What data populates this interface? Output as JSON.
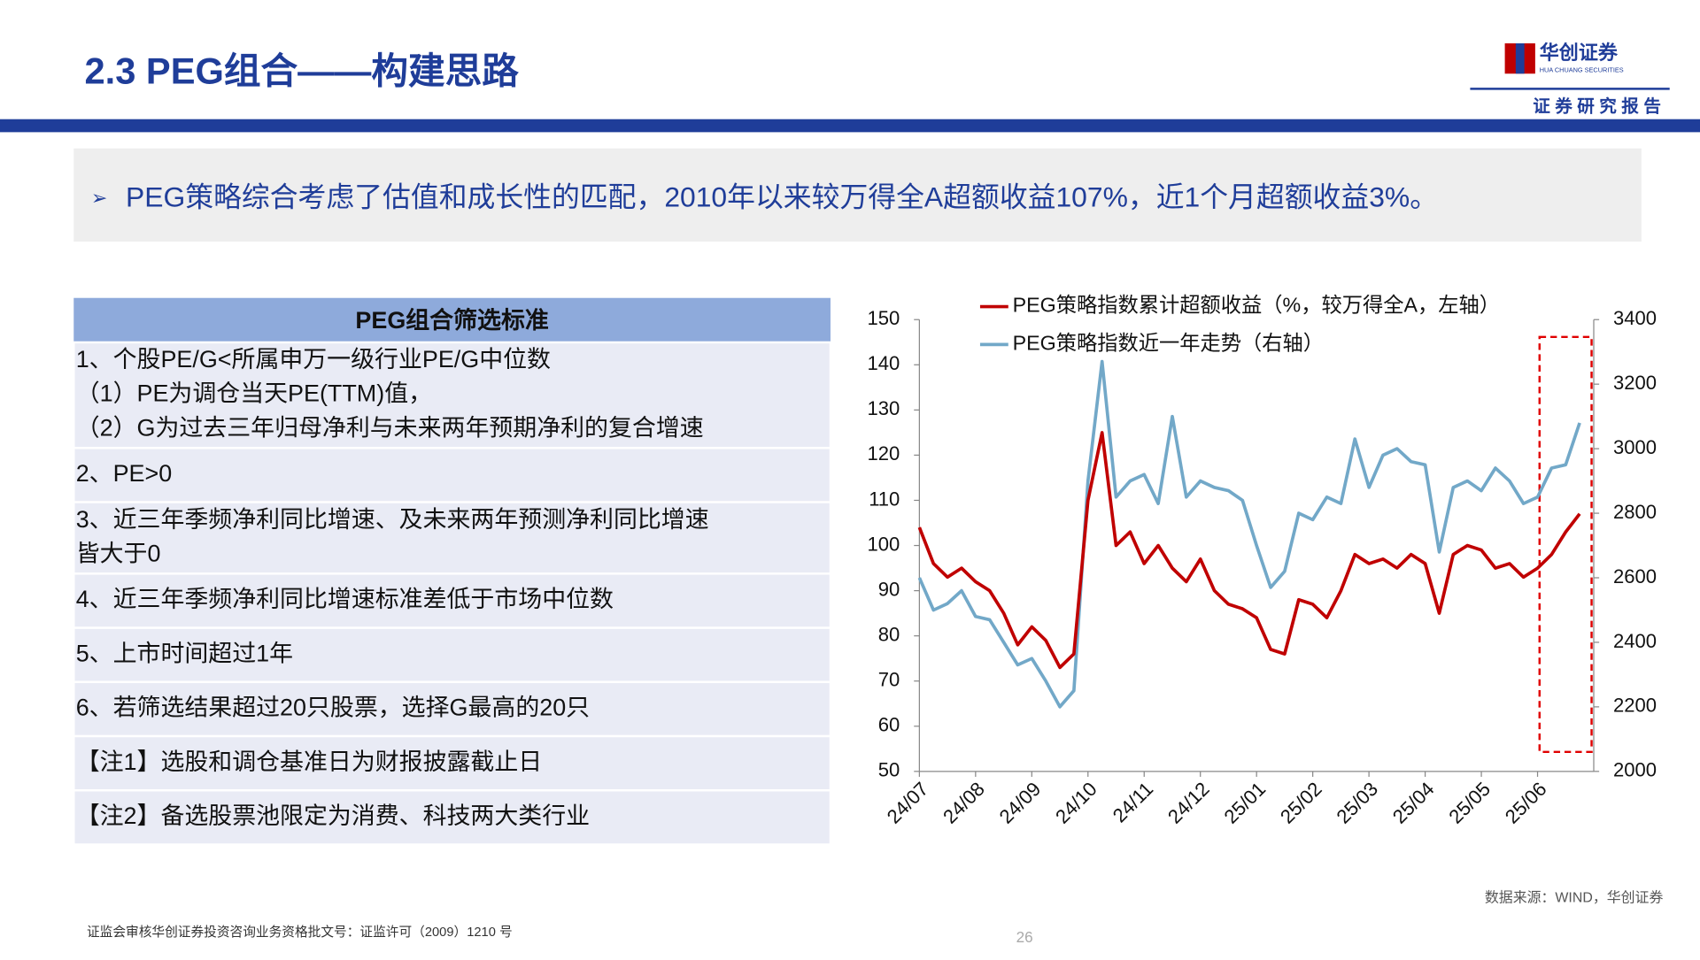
{
  "header": {
    "title": "2.3 PEG组合——构建思路",
    "logo_name": "华创证券",
    "logo_sub": "HUA CHUANG SECURITIES",
    "tagline": "证 券 研 究 报 告"
  },
  "summary": "PEG策略综合考虑了估值和成长性的匹配，2010年以来较万得全A超额收益107%，近1个月超额收益3%。",
  "table": {
    "title": "PEG组合筛选标准",
    "rows": [
      [
        "1、个股PE/G<所属申万一级行业PE/G中位数",
        "（1）PE为调仓当天PE(TTM)值，",
        "（2）G为过去三年归母净利与未来两年预期净利的复合增速"
      ],
      [
        "2、PE>0"
      ],
      [
        "3、近三年季频净利同比增速、及未来两年预测净利同比增速",
        "皆大于0"
      ],
      [
        "4、近三年季频净利同比增速标准差低于市场中位数"
      ],
      [
        "5、上市时间超过1年"
      ],
      [
        "6、若筛选结果超过20只股票，选择G最高的20只"
      ],
      [
        "【注1】选股和调仓基准日为财报披露截止日"
      ],
      [
        "【注2】备选股票池限定为消费、科技两大类行业"
      ]
    ]
  },
  "chart_data": {
    "type": "line",
    "categories": [
      "24/07",
      null,
      null,
      null,
      "24/08",
      null,
      null,
      null,
      "24/09",
      null,
      null,
      null,
      "24/10",
      null,
      null,
      null,
      "24/11",
      null,
      null,
      null,
      "24/12",
      null,
      null,
      null,
      "25/01",
      null,
      null,
      null,
      "25/02",
      null,
      null,
      null,
      "25/03",
      null,
      null,
      null,
      "25/04",
      null,
      null,
      null,
      "25/05",
      null,
      null,
      null,
      "25/06",
      null,
      null,
      null
    ],
    "series": [
      {
        "name": "PEG策略指数累计超额收益（%，较万得全A，左轴）",
        "color": "#c00000",
        "values": [
          104,
          96,
          93,
          95,
          92,
          90,
          85,
          78,
          82,
          79,
          73,
          76,
          110,
          125,
          100,
          103,
          96,
          100,
          95,
          92,
          97,
          90,
          87,
          86,
          84,
          77,
          76,
          88,
          87,
          84,
          90,
          98,
          96,
          97,
          95,
          98,
          96,
          85,
          98,
          100,
          99,
          95,
          96,
          93,
          95,
          98,
          103,
          107
        ]
      },
      {
        "name": "PEG策略指数近一年走势（右轴）",
        "color": "#72a8c8",
        "axis": "y2",
        "values": [
          2600,
          2500,
          2520,
          2560,
          2480,
          2470,
          2400,
          2330,
          2350,
          2280,
          2200,
          2250,
          2900,
          3270,
          2850,
          2900,
          2920,
          2830,
          3100,
          2850,
          2900,
          2880,
          2870,
          2840,
          2700,
          2570,
          2620,
          2800,
          2780,
          2850,
          2830,
          3030,
          2880,
          2980,
          3000,
          2960,
          2950,
          2680,
          2880,
          2900,
          2870,
          2940,
          2900,
          2830,
          2850,
          2940,
          2950,
          3080
        ]
      }
    ],
    "ylim": [
      50,
      150
    ],
    "yticks": [
      50,
      60,
      70,
      80,
      90,
      100,
      110,
      120,
      130,
      140,
      150
    ],
    "y2lim": [
      2000,
      3400
    ],
    "y2ticks": [
      2000,
      2200,
      2400,
      2600,
      2800,
      3000,
      3200,
      3400
    ]
  },
  "source": "数据来源：WIND，华创证券",
  "footer": {
    "license": "证监会审核华创证券投资咨询业务资格批文号：证监许可（2009）1210 号",
    "page": "26"
  }
}
